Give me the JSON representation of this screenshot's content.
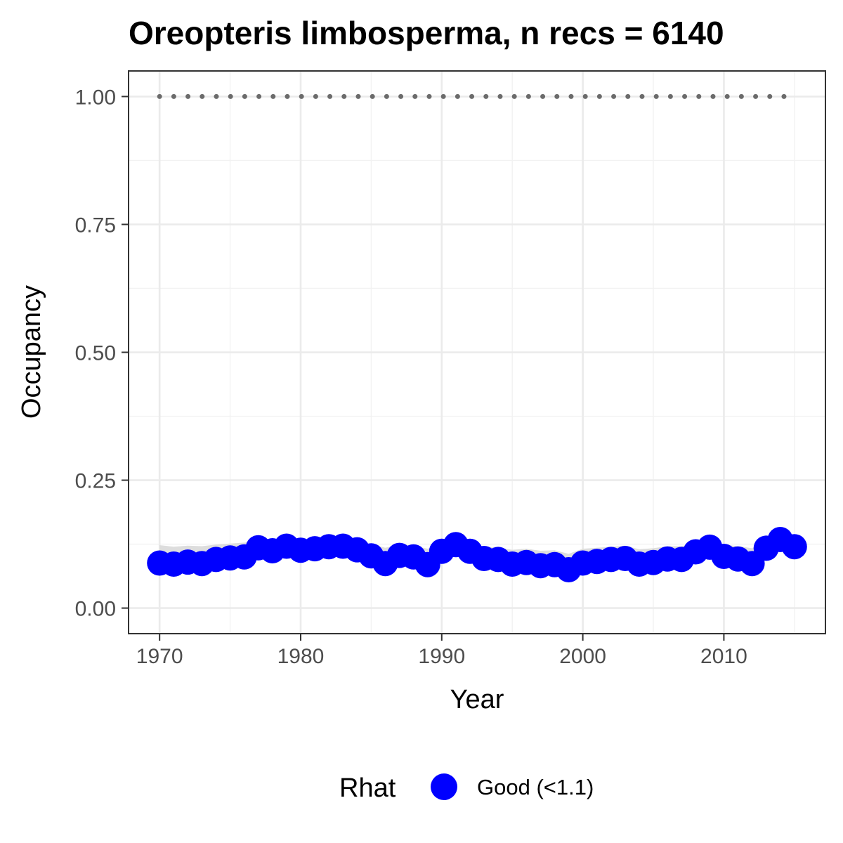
{
  "chart_data": {
    "type": "line",
    "title": "Oreopteris limbosperma, n recs = 6140",
    "xlabel": "Year",
    "ylabel": "Occupancy",
    "xlim": [
      1967.8,
      2017.2
    ],
    "ylim": [
      -0.05,
      1.05
    ],
    "x_ticks": [
      1970,
      1980,
      1990,
      2000,
      2010
    ],
    "x_tick_labels": [
      "1970",
      "1980",
      "1990",
      "2000",
      "2010"
    ],
    "y_ticks": [
      0,
      0.25,
      0.5,
      0.75,
      1.0
    ],
    "y_tick_labels": [
      "0.00",
      "0.25",
      "0.50",
      "0.75",
      "1.00"
    ],
    "grid": true,
    "x": [
      1970,
      1971,
      1972,
      1973,
      1974,
      1975,
      1976,
      1977,
      1978,
      1979,
      1980,
      1981,
      1982,
      1983,
      1984,
      1985,
      1986,
      1987,
      1988,
      1989,
      1990,
      1991,
      1992,
      1993,
      1994,
      1995,
      1996,
      1997,
      1998,
      1999,
      2000,
      2001,
      2002,
      2003,
      2004,
      2005,
      2006,
      2007,
      2008,
      2009,
      2010,
      2011,
      2012,
      2013,
      2014,
      2015
    ],
    "series": [
      {
        "name": "Good (<1.1)",
        "color": "#0000ff",
        "values": [
          0.088,
          0.086,
          0.09,
          0.087,
          0.095,
          0.098,
          0.1,
          0.118,
          0.112,
          0.121,
          0.113,
          0.116,
          0.12,
          0.121,
          0.114,
          0.102,
          0.087,
          0.103,
          0.1,
          0.085,
          0.111,
          0.124,
          0.111,
          0.097,
          0.095,
          0.086,
          0.089,
          0.083,
          0.085,
          0.075,
          0.088,
          0.091,
          0.095,
          0.097,
          0.086,
          0.089,
          0.096,
          0.095,
          0.11,
          0.119,
          0.101,
          0.096,
          0.087,
          0.117,
          0.134,
          0.12
        ]
      }
    ],
    "ribbon": {
      "color": "#d9d9d9",
      "lower": [
        0.088,
        0.086,
        0.09,
        0.087,
        0.095,
        0.098,
        0.1,
        0.118,
        0.112,
        0.121,
        0.113,
        0.116,
        0.12,
        0.121,
        0.114,
        0.102,
        0.087,
        0.103,
        0.1,
        0.085,
        0.111,
        0.124,
        0.111,
        0.097,
        0.095,
        0.086,
        0.089,
        0.083,
        0.085,
        0.075,
        0.088,
        0.091,
        0.095,
        0.097,
        0.086,
        0.089,
        0.096,
        0.095,
        0.11,
        0.119,
        0.101,
        0.096,
        0.087,
        0.117,
        0.134,
        0.12
      ],
      "upper": [
        0.123,
        0.12,
        0.122,
        0.121,
        0.124,
        0.126,
        0.128,
        0.13,
        0.13,
        0.132,
        0.13,
        0.131,
        0.133,
        0.134,
        0.13,
        0.125,
        0.118,
        0.124,
        0.122,
        0.116,
        0.128,
        0.134,
        0.128,
        0.12,
        0.118,
        0.114,
        0.116,
        0.112,
        0.113,
        0.106,
        0.116,
        0.118,
        0.12,
        0.122,
        0.115,
        0.117,
        0.121,
        0.121,
        0.128,
        0.132,
        0.124,
        0.121,
        0.117,
        0.131,
        0.14,
        0.133
      ]
    },
    "reference_line": {
      "y": 1.0,
      "style": "dotted",
      "color": "#6b6b6b"
    },
    "legend": {
      "title": "Rhat",
      "placement": "bottom",
      "entries": [
        {
          "label": "Good (<1.1)",
          "color": "#0000ff"
        }
      ]
    }
  }
}
